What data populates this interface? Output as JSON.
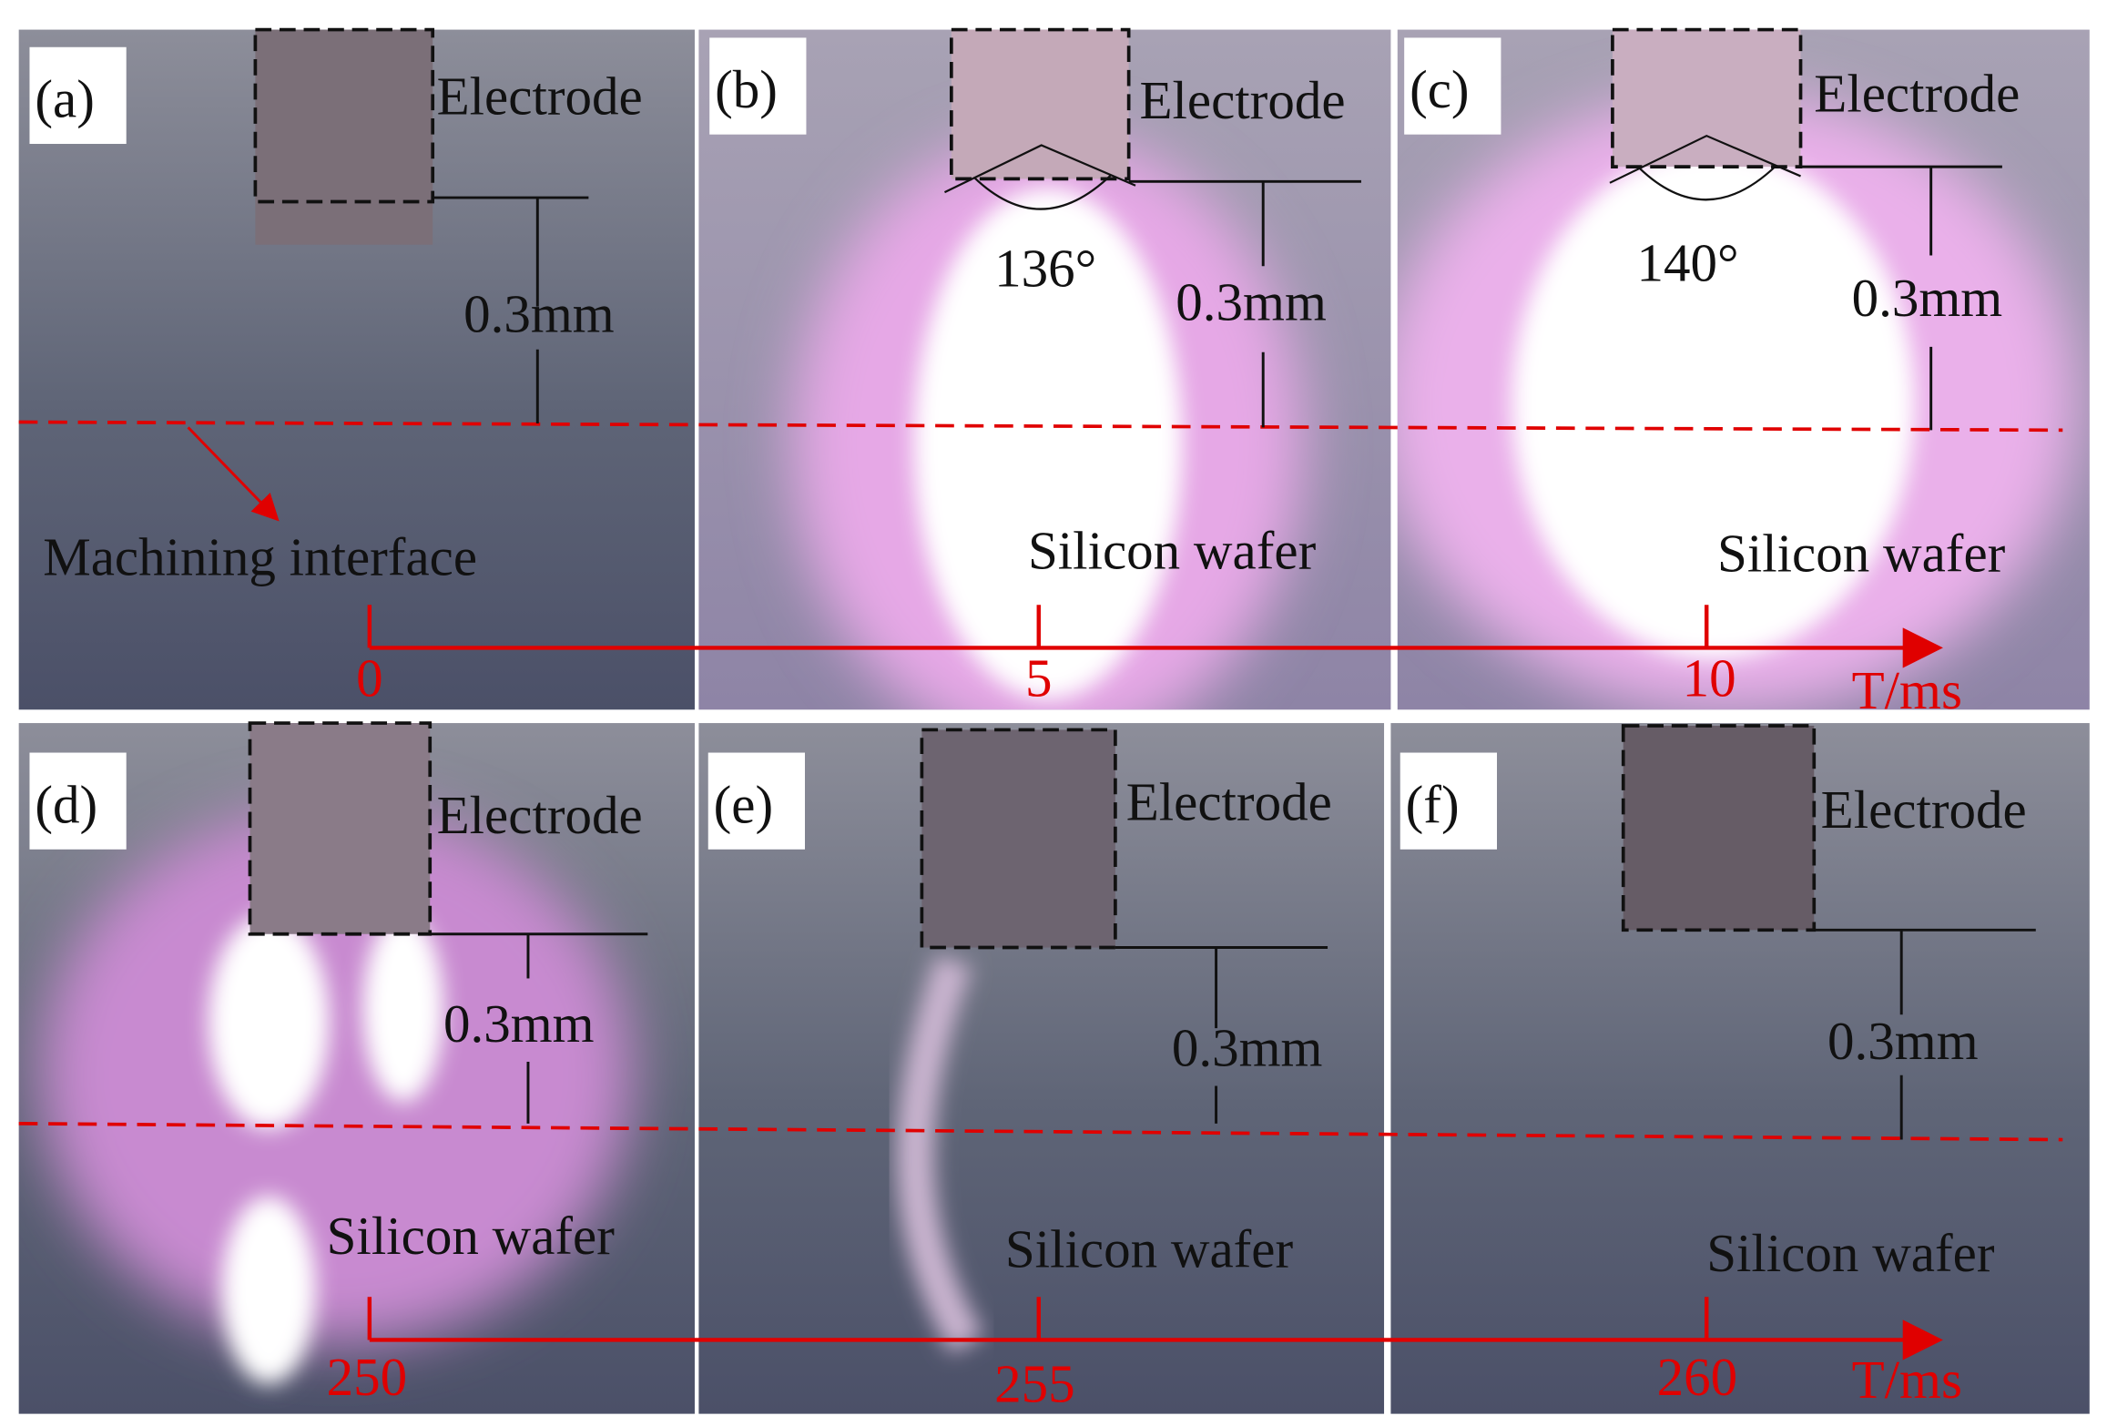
{
  "rows": [
    {
      "panels": [
        {
          "label": "(a)",
          "electrode": "Electrode",
          "gap": "0.3mm",
          "note": "Machining interface"
        },
        {
          "label": "(b)",
          "electrode": "Electrode",
          "gap": "0.3mm",
          "angle": "136°",
          "wafer": "Silicon wafer"
        },
        {
          "label": "(c)",
          "electrode": "Electrode",
          "gap": "0.3mm",
          "angle": "140°",
          "wafer": "Silicon wafer"
        }
      ],
      "time": {
        "ticks": [
          "0",
          "5",
          "10"
        ],
        "unit": "T/ms"
      }
    },
    {
      "panels": [
        {
          "label": "(d)",
          "electrode": "Electrode",
          "gap": "0.3mm",
          "wafer": "Silicon wafer"
        },
        {
          "label": "(e)",
          "electrode": "Electrode",
          "gap": "0.3mm",
          "wafer": "Silicon wafer"
        },
        {
          "label": "(f)",
          "electrode": "Electrode",
          "gap": "0.3mm",
          "wafer": "Silicon wafer"
        }
      ],
      "time": {
        "ticks": [
          "250",
          "255",
          "260"
        ],
        "unit": "T/ms"
      }
    }
  ]
}
